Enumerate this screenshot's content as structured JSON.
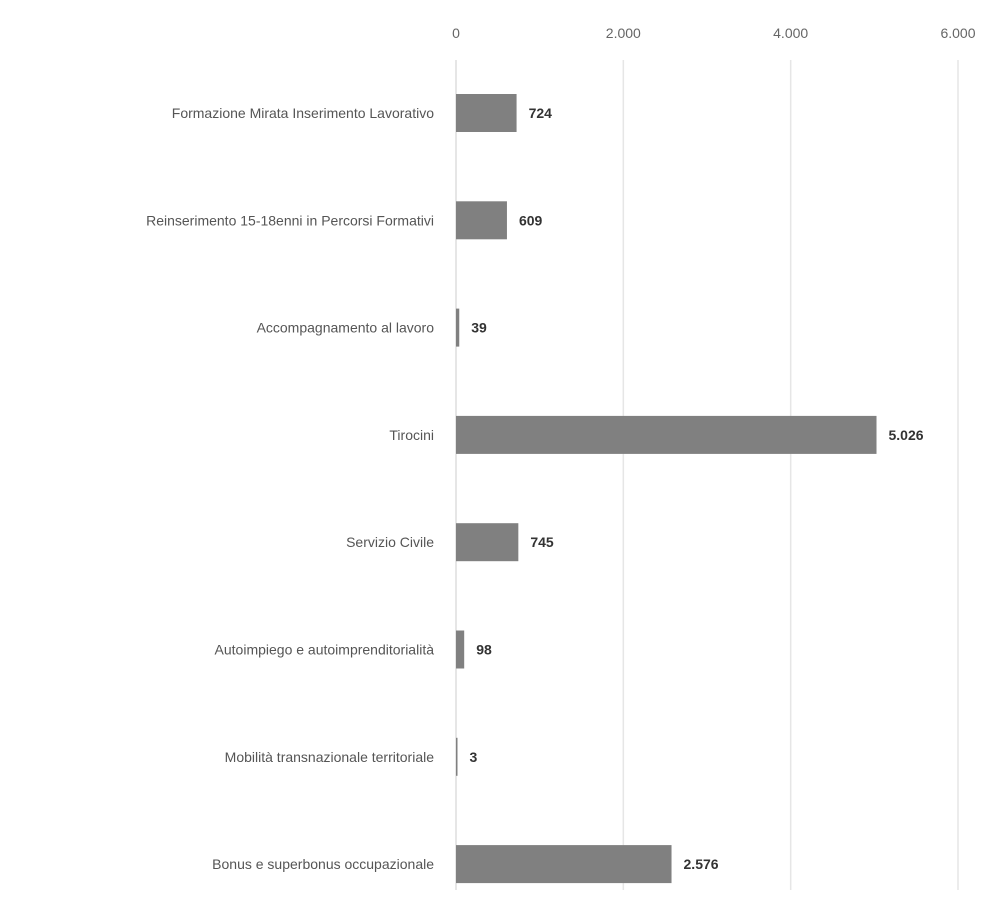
{
  "chart_data": {
    "type": "bar",
    "orientation": "horizontal",
    "categories": [
      "Formazione Mirata Inserimento Lavorativo",
      "Reinserimento 15-18enni in Percorsi Formativi",
      "Accompagnamento al lavoro",
      "Tirocini",
      "Servizio Civile",
      "Autoimpiego e autoimprenditorialità",
      "Mobilità transnazionale territoriale",
      "Bonus e superbonus occupazionale"
    ],
    "values": [
      724,
      609,
      39,
      5026,
      745,
      98,
      3,
      2576
    ],
    "value_labels": [
      "724",
      "609",
      "39",
      "5.026",
      "745",
      "98",
      "3",
      "2.576"
    ],
    "xlim": [
      0,
      6000
    ],
    "x_ticks": [
      0,
      2000,
      4000,
      6000
    ],
    "x_tick_labels": [
      "0",
      "2.000",
      "4.000",
      "6.000"
    ],
    "axis_position": "top",
    "grid": true,
    "bar_color": "#808080",
    "title": "",
    "xlabel": "",
    "ylabel": ""
  }
}
